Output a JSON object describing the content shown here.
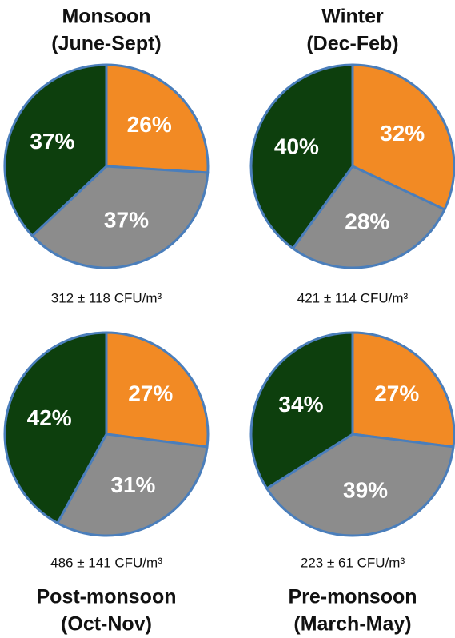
{
  "chart_data": [
    {
      "type": "pie",
      "title": [
        "Monsoon",
        "(June-Sept)"
      ],
      "caption": "312 ± 118 CFU/m³",
      "values": [
        26,
        37,
        37
      ],
      "value_labels": [
        "26%",
        "37%",
        "37%"
      ],
      "colors": [
        "#f28a24",
        "#8c8c8c",
        "#0d3f0d"
      ]
    },
    {
      "type": "pie",
      "title": [
        "Winter",
        "(Dec-Feb)"
      ],
      "caption": "421 ± 114 CFU/m³",
      "values": [
        32,
        28,
        40
      ],
      "value_labels": [
        "32%",
        "28%",
        "40%"
      ],
      "colors": [
        "#f28a24",
        "#8c8c8c",
        "#0d3f0d"
      ]
    },
    {
      "type": "pie",
      "title": [
        "Post-monsoon",
        "(Oct-Nov)"
      ],
      "caption": "486 ± 141 CFU/m³",
      "values": [
        27,
        31,
        42
      ],
      "value_labels": [
        "27%",
        "31%",
        "42%"
      ],
      "colors": [
        "#f28a24",
        "#8c8c8c",
        "#0d3f0d"
      ]
    },
    {
      "type": "pie",
      "title": [
        "Pre-monsoon",
        "(March-May)"
      ],
      "caption": "223 ± 61 CFU/m³",
      "values": [
        27,
        39,
        34
      ],
      "value_labels": [
        "27%",
        "39%",
        "34%"
      ],
      "colors": [
        "#f28a24",
        "#8c8c8c",
        "#0d3f0d"
      ]
    }
  ]
}
